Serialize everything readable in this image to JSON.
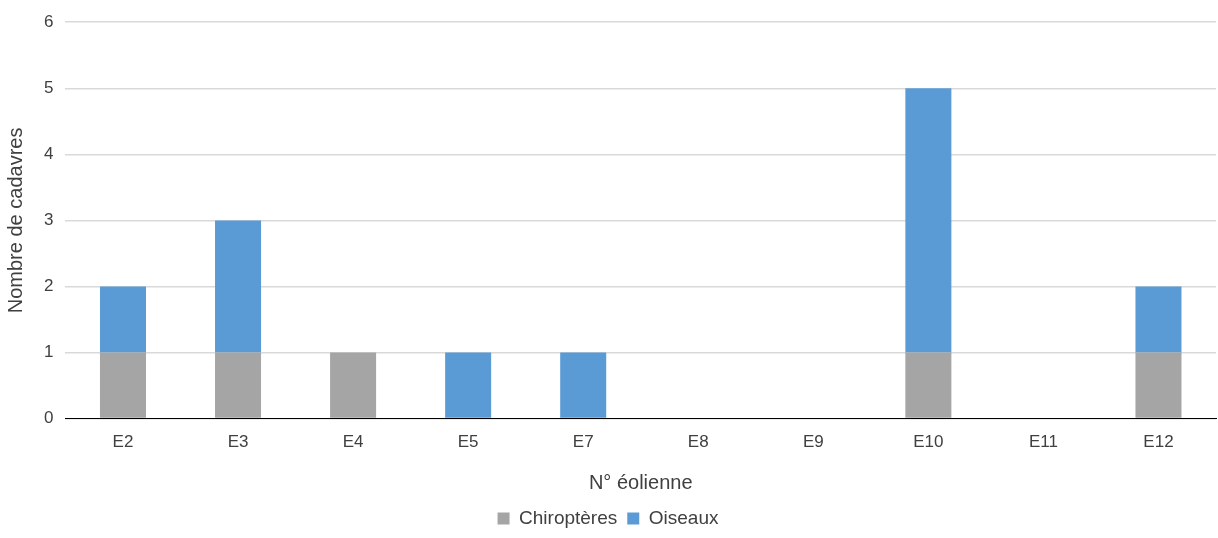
{
  "chart_data": {
    "type": "bar",
    "stacked": true,
    "xlabel": "N° éolienne",
    "ylabel": "Nombre de cadavres",
    "categories": [
      "E2",
      "E3",
      "E4",
      "E5",
      "E7",
      "E8",
      "E9",
      "E10",
      "E11",
      "E12"
    ],
    "series": [
      {
        "name": "Chiroptères",
        "color": "#a5a5a5",
        "values": [
          1,
          1,
          1,
          0,
          0,
          0,
          0,
          1,
          0,
          1
        ]
      },
      {
        "name": "Oiseaux",
        "color": "#5b9bd5",
        "values": [
          1,
          2,
          0,
          1,
          1,
          0,
          0,
          4,
          0,
          1
        ]
      }
    ],
    "ylim": [
      0,
      6
    ],
    "yticks": [
      0,
      1,
      2,
      3,
      4,
      5,
      6
    ],
    "grid": "y",
    "legend": "bottom"
  }
}
